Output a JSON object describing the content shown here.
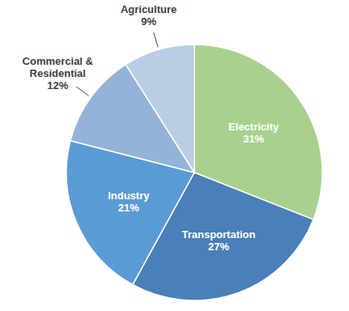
{
  "chart_data": {
    "type": "pie",
    "categories": [
      "Electricity",
      "Transportation",
      "Industry",
      "Commercial & Residential",
      "Agriculture"
    ],
    "values": [
      31,
      27,
      21,
      12,
      9
    ],
    "value_labels": [
      "31%",
      "27%",
      "21%",
      "12%",
      "9%"
    ],
    "colors": [
      "#a9d18e",
      "#4a7fb8",
      "#5b9bd5",
      "#95b3d7",
      "#b9cde5"
    ],
    "data_labels": true
  }
}
